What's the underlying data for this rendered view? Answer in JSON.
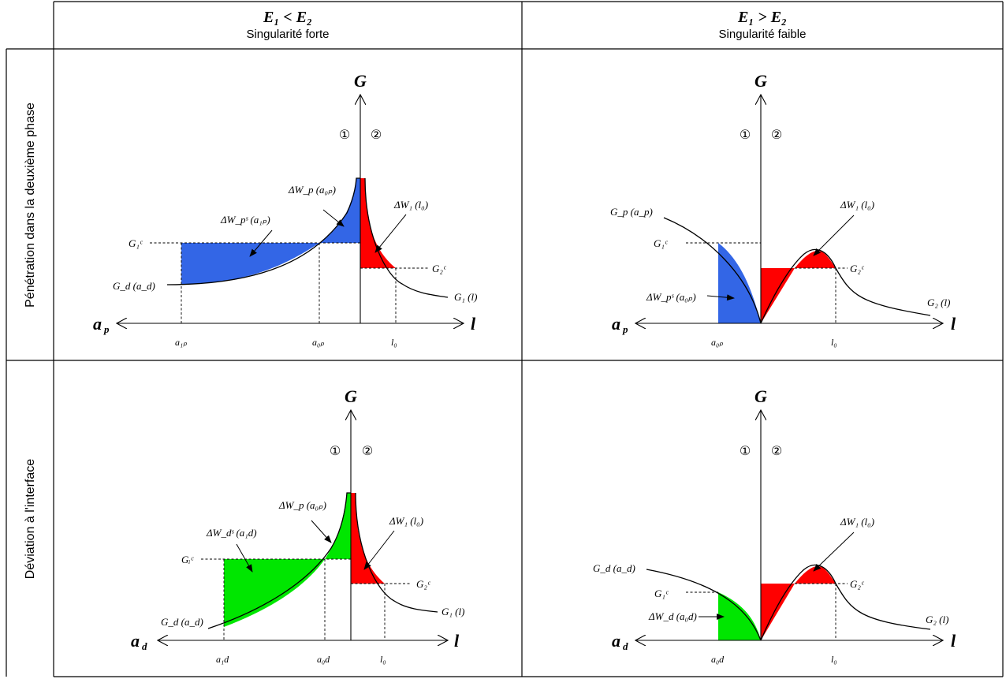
{
  "header": {
    "col1_title": "E₁ < E₂",
    "col1_subtitle": "Singularité forte",
    "col2_title": "E₁ > E₂",
    "col2_subtitle": "Singularité faible"
  },
  "rows": {
    "row1_label": "Pénétration dans la deuxième phase",
    "row2_label": "Déviation à l'interface"
  },
  "colors": {
    "blue": "#3366e6",
    "red": "#ff0000",
    "green": "#00e600"
  },
  "zones": {
    "mat1": "①",
    "mat2": "②"
  },
  "axes": {
    "G": "G",
    "l": "l",
    "ap": "a",
    "ap_sub": "p",
    "ad": "a",
    "ad_sub": "d"
  },
  "p1": {
    "Gd": "G_d (a_d)",
    "G1c": "G₁ᶜ",
    "G2c": "G₂ᶜ",
    "dWps": "ΔW_pˢ (a₁ₚ)",
    "dWp": "ΔW_p (a₀ₚ)",
    "dW1": "ΔW₁ (l₀)",
    "G1l": "G₁ (l)",
    "a1p": "a₁ₚ",
    "a0p": "a₀ₚ",
    "l0": "l₀"
  },
  "p2": {
    "Gp": "G_p (a_p)",
    "G1c": "G₁ᶜ",
    "G2c": "G₂ᶜ",
    "dWps": "ΔW_pˢ (a₀ₚ)",
    "dW1": "ΔW₁ (l₀)",
    "G2l": "G₂ (l)",
    "a0p": "a₀ₚ",
    "l0": "l₀"
  },
  "p3": {
    "Gd": "G_d (a_d)",
    "Gic": "Gᵢᶜ",
    "G2c": "G₂ᶜ",
    "dWds": "ΔW_dˢ (a₁d)",
    "dWp": "ΔW_p (a₀ₚ)",
    "dW1": "ΔW₁ (l₀)",
    "G1l": "G₁ (l)",
    "a1d": "a₁d",
    "a0d": "a₀d",
    "l0": "l₀"
  },
  "p4": {
    "Gd": "G_d (a_d)",
    "G1c": "G₁ᶜ",
    "G2c": "G₂ᶜ",
    "dWd": "ΔW_d (a₀d)",
    "dW1": "ΔW₁ (l₀)",
    "G2l": "G₂ (l)",
    "a0d": "a₀d",
    "l0": "l₀"
  }
}
